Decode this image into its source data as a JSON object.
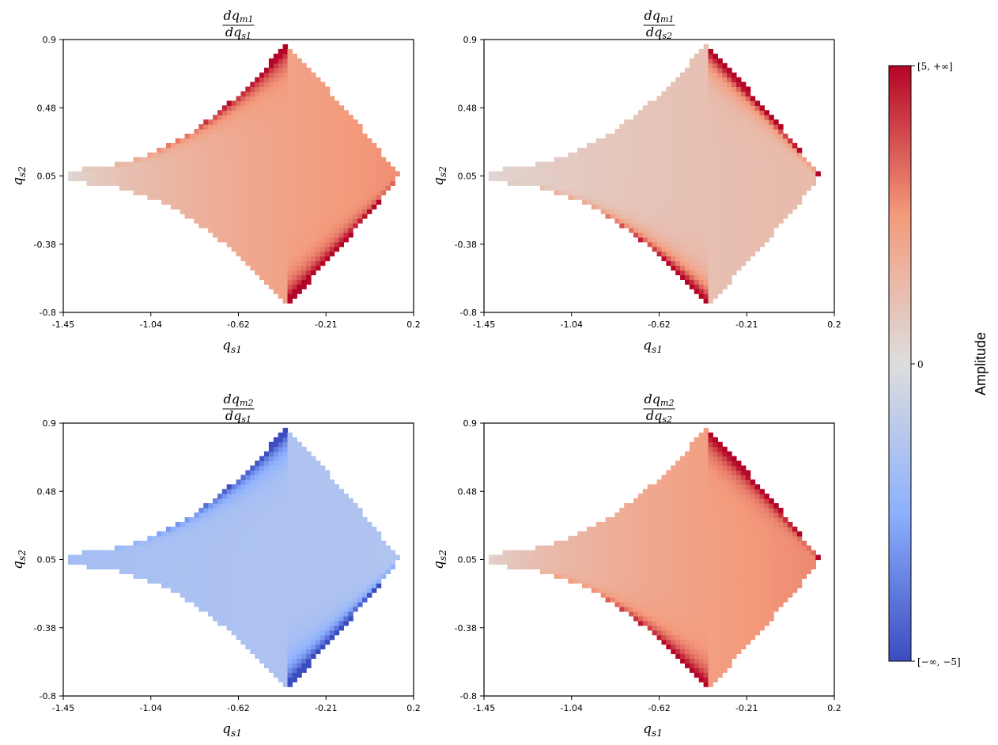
{
  "chart_data": [
    {
      "type": "heatmap",
      "title": {
        "num_d": "dq",
        "num_sub": "m1",
        "den_d": "dq",
        "den_sub": "s1"
      },
      "xlabel": {
        "main": "q",
        "sub": "s1"
      },
      "ylabel": {
        "main": "q",
        "sub": "s2"
      },
      "xticks": [
        "-1.45",
        "-1.04",
        "-0.62",
        "-0.21",
        "0.2"
      ],
      "yticks": [
        "0.9",
        "0.48",
        "0.05",
        "-0.38",
        "-0.8"
      ],
      "xlim": [
        -1.45,
        0.2
      ],
      "ylim": [
        -0.8,
        0.9
      ],
      "region": {
        "left_tip": [
          -1.42,
          0.05
        ],
        "right_tip": [
          0.13,
          0.05
        ],
        "top_tip": [
          -0.4,
          0.88
        ],
        "bottom_tip": [
          -0.4,
          -0.76
        ]
      },
      "field": {
        "tip_value": 0.1,
        "center_value": 2.7,
        "saturated_edges": [
          "upper-left",
          "lower-right"
        ]
      }
    },
    {
      "type": "heatmap",
      "title": {
        "num_d": "dq",
        "num_sub": "m1",
        "den_d": "dq",
        "den_sub": "s2"
      },
      "xlabel": {
        "main": "q",
        "sub": "s1"
      },
      "ylabel": {
        "main": "q",
        "sub": "s2"
      },
      "xticks": [
        "-1.45",
        "-1.04",
        "-0.62",
        "-0.21",
        "0.2"
      ],
      "yticks": [
        "0.9",
        "0.48",
        "0.05",
        "-0.38",
        "-0.8"
      ],
      "xlim": [
        -1.45,
        0.2
      ],
      "ylim": [
        -0.8,
        0.9
      ],
      "region": {
        "left_tip": [
          -1.42,
          0.05
        ],
        "right_tip": [
          0.13,
          0.05
        ],
        "top_tip": [
          -0.4,
          0.88
        ],
        "bottom_tip": [
          -0.4,
          -0.76
        ]
      },
      "field": {
        "tip_value": 0.2,
        "center_value": 1.3,
        "saturated_edges": [
          "upper-right",
          "lower-left"
        ]
      }
    },
    {
      "type": "heatmap",
      "title": {
        "num_d": "dq",
        "num_sub": "m2",
        "den_d": "dq",
        "den_sub": "s1"
      },
      "xlabel": {
        "main": "q",
        "sub": "s1"
      },
      "ylabel": {
        "main": "q",
        "sub": "s2"
      },
      "xticks": [
        "-1.45",
        "-1.04",
        "-0.62",
        "-0.21",
        "0.2"
      ],
      "yticks": [
        "0.9",
        "0.48",
        "0.05",
        "-0.38",
        "-0.8"
      ],
      "xlim": [
        -1.45,
        0.2
      ],
      "ylim": [
        -0.8,
        0.9
      ],
      "region": {
        "left_tip": [
          -1.42,
          0.05
        ],
        "right_tip": [
          0.13,
          0.05
        ],
        "top_tip": [
          -0.4,
          0.88
        ],
        "bottom_tip": [
          -0.4,
          -0.76
        ]
      },
      "field": {
        "tip_value": -1.8,
        "center_value": -1.4,
        "saturated_edges": [
          "upper-left",
          "lower-right"
        ]
      }
    },
    {
      "type": "heatmap",
      "title": {
        "num_d": "dq",
        "num_sub": "m2",
        "den_d": "dq",
        "den_sub": "s2"
      },
      "xlabel": {
        "main": "q",
        "sub": "s1"
      },
      "ylabel": {
        "main": "q",
        "sub": "s2"
      },
      "xticks": [
        "-1.45",
        "-1.04",
        "-0.62",
        "-0.21",
        "0.2"
      ],
      "yticks": [
        "0.9",
        "0.48",
        "0.05",
        "-0.38",
        "-0.8"
      ],
      "xlim": [
        -1.45,
        0.2
      ],
      "ylim": [
        -0.8,
        0.9
      ],
      "region": {
        "left_tip": [
          -1.42,
          0.05
        ],
        "right_tip": [
          0.13,
          0.05
        ],
        "top_tip": [
          -0.4,
          0.88
        ],
        "bottom_tip": [
          -0.4,
          -0.76
        ]
      },
      "field": {
        "tip_value": 0.3,
        "center_value": 2.8,
        "saturated_edges": [
          "upper-right",
          "lower-left"
        ]
      }
    }
  ],
  "colorbar": {
    "label": "Amplitude",
    "colormap": "coolwarm",
    "range": [
      -5,
      5
    ],
    "colors": {
      "low": "#3b4cc0",
      "mid": "#dddddd",
      "high": "#b40426"
    },
    "tick_top": "[5, +∞]",
    "tick_mid": "0",
    "tick_bottom": "[−∞, −5]"
  }
}
